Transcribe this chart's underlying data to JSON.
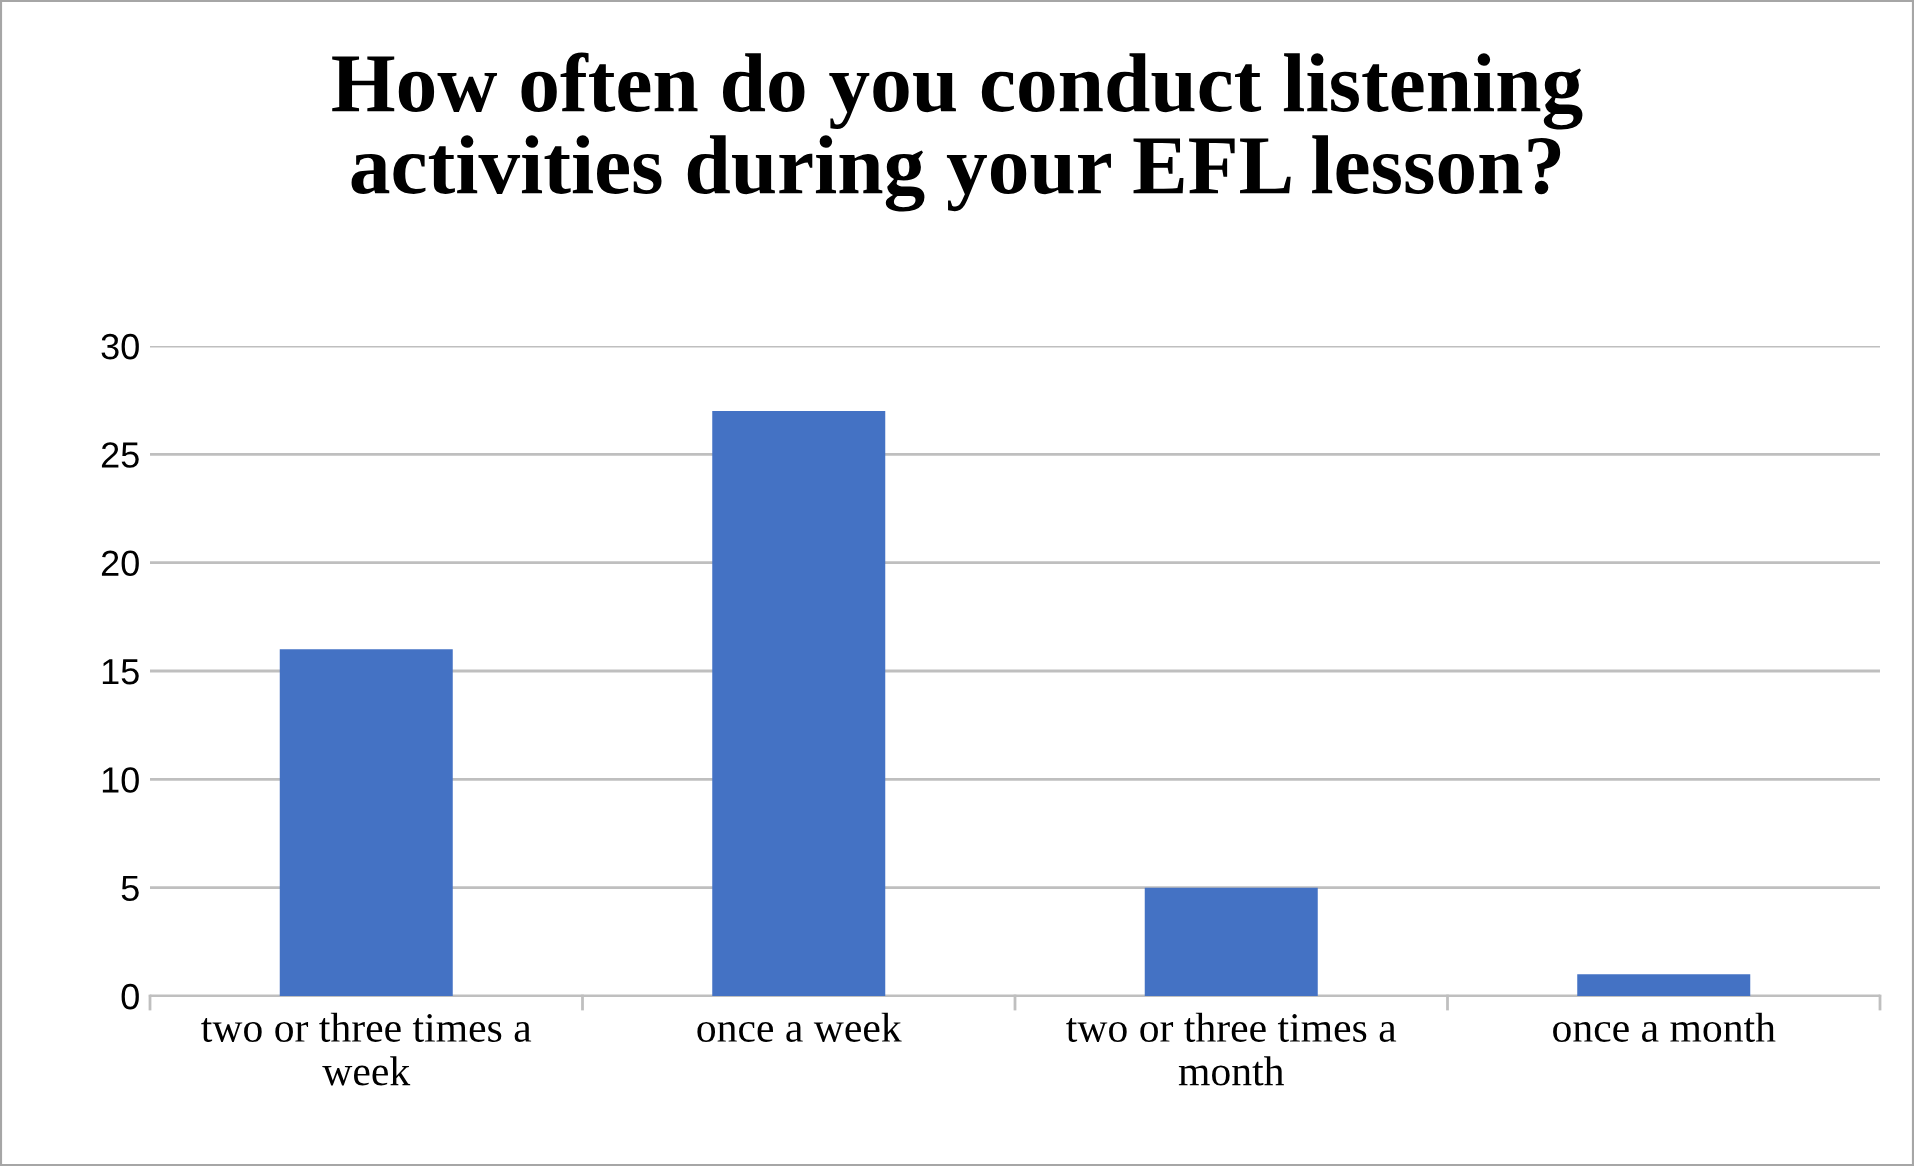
{
  "chart_data": {
    "type": "bar",
    "title": "How often do you conduct listening activities during your EFL lesson?",
    "categories": [
      "two or three times a week",
      "once a week",
      "two or three times a month",
      "once a month"
    ],
    "values": [
      16,
      27,
      5,
      1
    ],
    "color": "#4472c4",
    "ylim": [
      0,
      30
    ],
    "yticks": [
      0,
      5,
      10,
      15,
      20,
      25,
      30
    ],
    "grid": "y",
    "legend": false
  }
}
